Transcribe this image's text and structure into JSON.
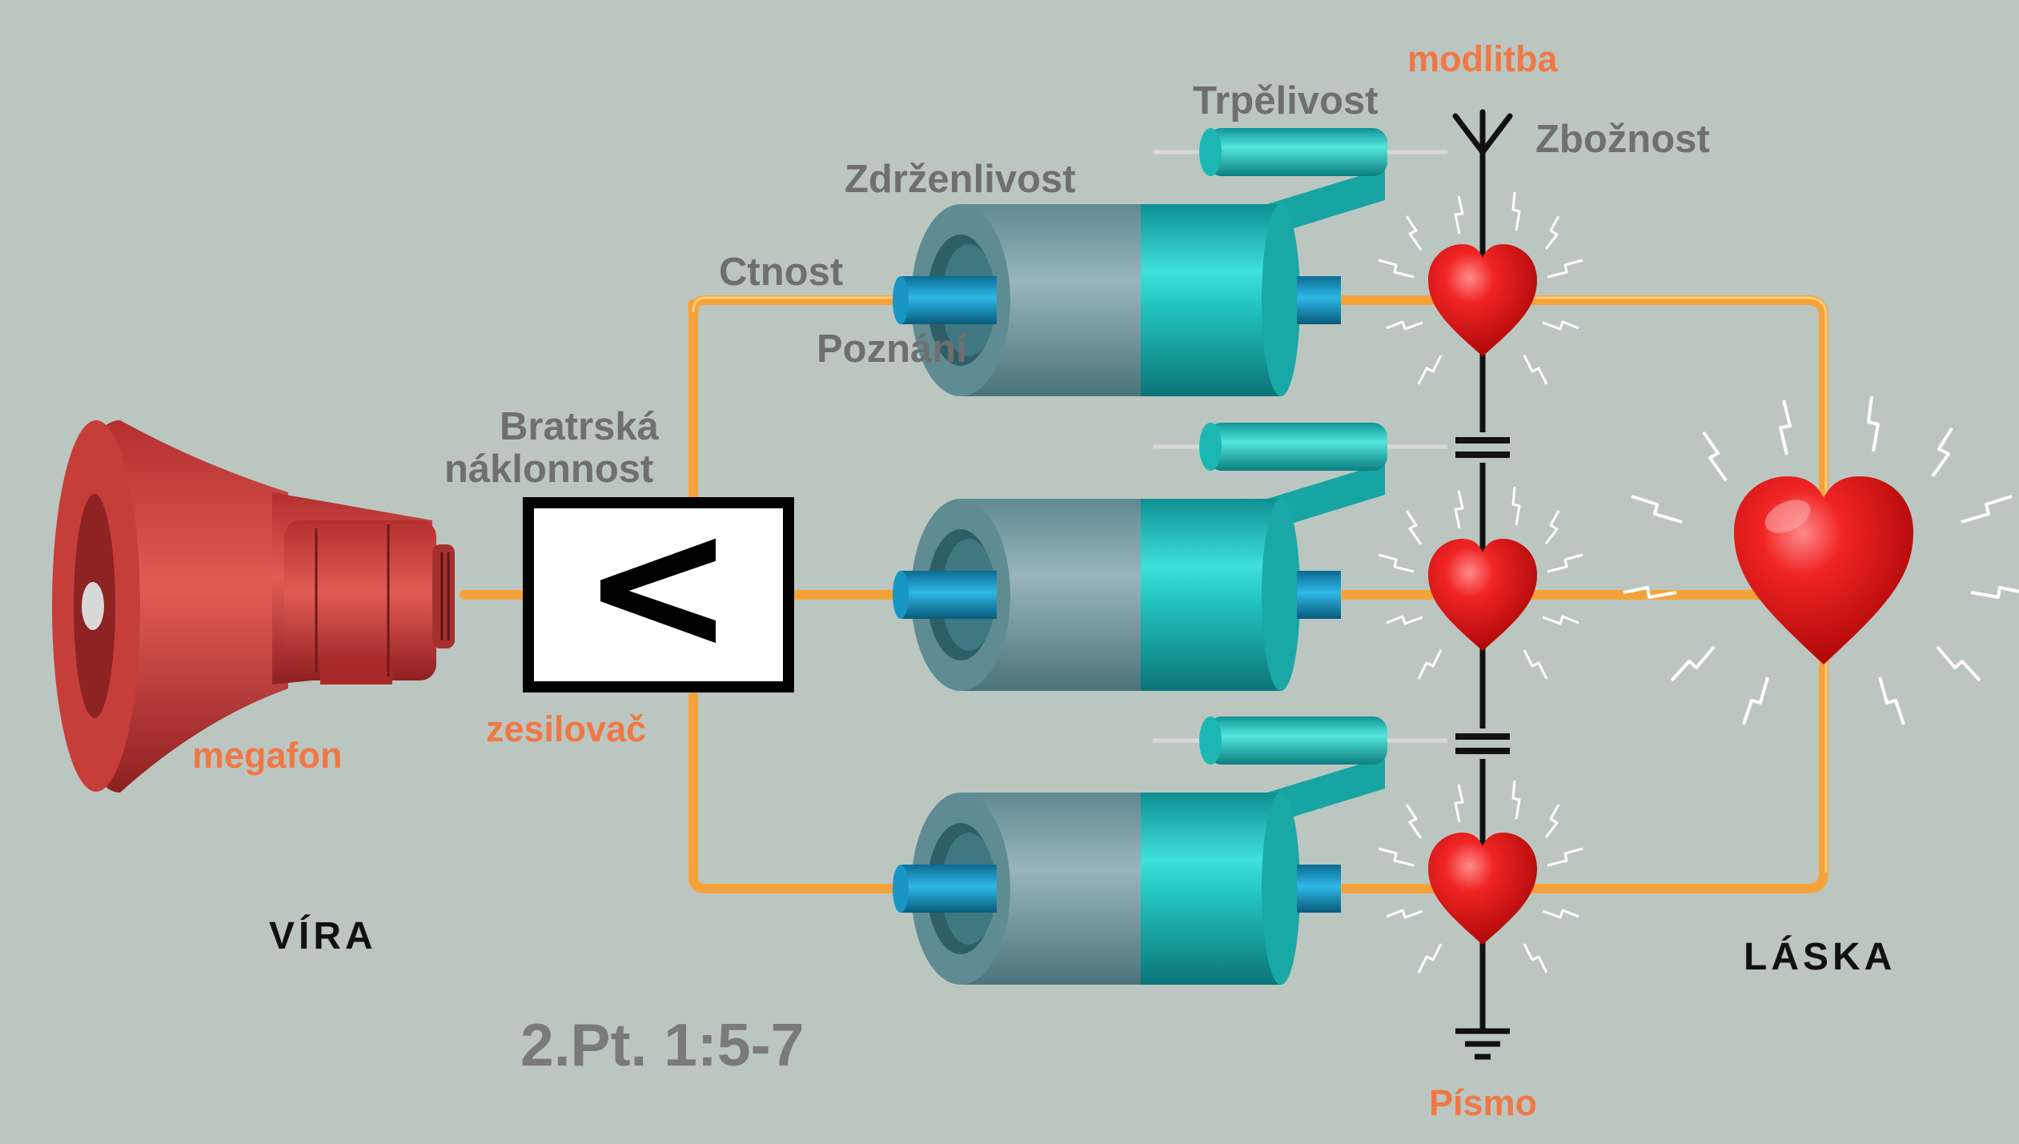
{
  "colors": {
    "background": "#bcc6c1",
    "wire": "#f6a23a",
    "heart": "#e01818",
    "coil": "#1fb3b0",
    "label_gray": "#6f6f6f",
    "label_orange": "#f07845"
  },
  "icons": [
    "megaphone-icon",
    "amplifier-icon",
    "heart-icon",
    "antenna-icon",
    "ground-icon",
    "capacitor-icon",
    "coil-icon",
    "resistor-icon",
    "spark-icon"
  ],
  "labels": {
    "modlitba": "modlitba",
    "trpelivost": "Trpělivost",
    "zboznost": "Zbožnost",
    "zdrzenlivost": "Zdrženlivost",
    "ctnost": "Ctnost",
    "poznani": "Poznání",
    "bratrska_line1": "Bratrská",
    "bratrska_line2": "náklonnost",
    "megafon": "megafon",
    "zesilovac": "zesilovač",
    "vira": "VÍRA",
    "laska": "LÁSKA",
    "reference": "2.Pt. 1:5-7",
    "pismo": "Písmo",
    "amplifier_symbol": "<"
  }
}
